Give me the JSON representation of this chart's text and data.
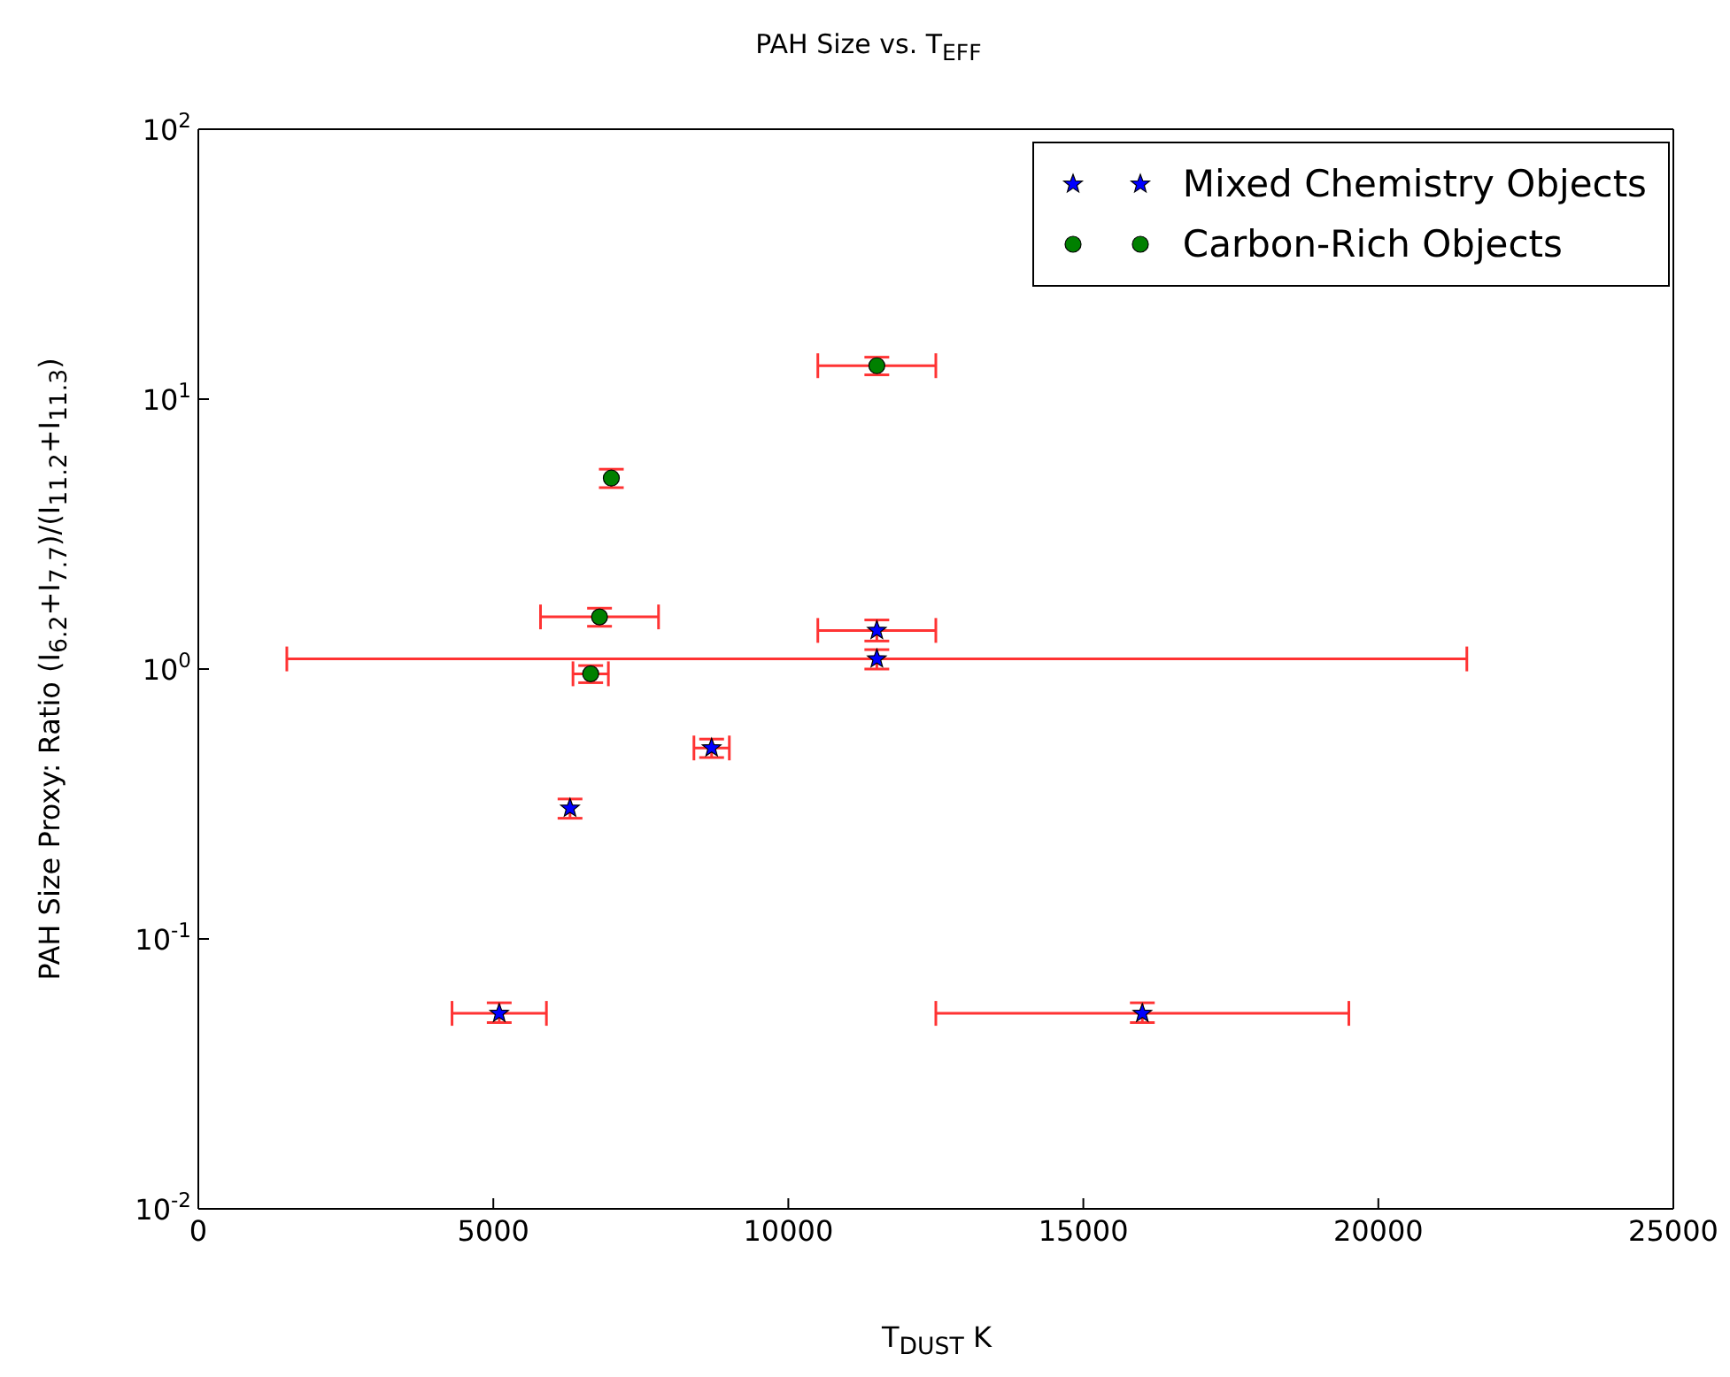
{
  "chart_data": {
    "type": "scatter",
    "title": "PAH Size vs. T$_{EFF}$",
    "xlabel": "T$_{DUST}$ K",
    "ylabel": "PAH Size Proxy: Ratio (I$_{6.2}$+I$_{7.7}$)/(I$_{11.2}$+I$_{11.3}$)",
    "log": "y",
    "xlim": [
      0,
      25000
    ],
    "xticks": [
      0,
      5000,
      10000,
      15000,
      20000,
      25000
    ],
    "ylim": [
      0.01,
      100
    ],
    "yticks": [
      {
        "value": 0.01,
        "label": "10$^{-2}$"
      },
      {
        "value": 0.1,
        "label": "10$^{-1}$"
      },
      {
        "value": 1,
        "label": "10$^{0}$"
      },
      {
        "value": 10,
        "label": "10$^{1}$"
      },
      {
        "value": 100,
        "label": "10$^{2}$"
      }
    ],
    "grid": false,
    "legend": "top right",
    "series": [
      {
        "name": "Mixed Chemistry Objects",
        "color": "#0000ff",
        "marker": "star",
        "x": [
          5100,
          6300,
          8700,
          11500,
          11500,
          16000
        ],
        "values": [
          0.053,
          0.305,
          0.51,
          1.09,
          1.39,
          0.053
        ],
        "errors": [
          [
            0.049,
            0.058
          ],
          [
            0.28,
            0.33
          ],
          [
            0.47,
            0.55
          ],
          [
            1.0,
            1.18
          ],
          [
            1.27,
            1.52
          ],
          [
            0.049,
            0.058
          ]
        ],
        "xerrors": [
          800,
          null,
          300,
          10000,
          1000,
          3500
        ]
      },
      {
        "name": "Carbon-Rich Objects",
        "color": "#008000",
        "marker": "circle",
        "x": [
          6650,
          6800,
          7000,
          11500
        ],
        "values": [
          0.96,
          1.56,
          5.1,
          13.3
        ],
        "errors": [
          [
            0.89,
            1.03
          ],
          [
            1.44,
            1.68
          ],
          [
            4.7,
            5.5
          ],
          [
            12.3,
            14.3
          ]
        ],
        "xerrors": [
          300,
          1000,
          null,
          1000
        ]
      }
    ]
  }
}
